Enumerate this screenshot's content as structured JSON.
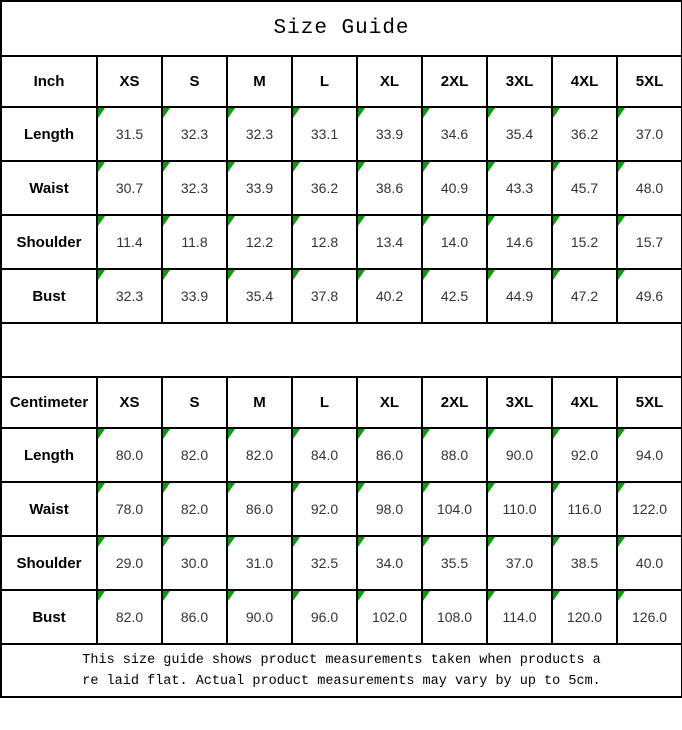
{
  "title": "Size Guide",
  "colors": {
    "border": "#000000",
    "flag_triangle_green": "#0a9a0a",
    "data_text": "#333333",
    "background": "#ffffff"
  },
  "size_columns": [
    "XS",
    "S",
    "M",
    "L",
    "XL",
    "2XL",
    "3XL",
    "4XL",
    "5XL"
  ],
  "tables": [
    {
      "unit_label": "Inch",
      "rows": [
        {
          "label": "Length",
          "values": [
            "31.5",
            "32.3",
            "32.3",
            "33.1",
            "33.9",
            "34.6",
            "35.4",
            "36.2",
            "37.0"
          ]
        },
        {
          "label": "Waist",
          "values": [
            "30.7",
            "32.3",
            "33.9",
            "36.2",
            "38.6",
            "40.9",
            "43.3",
            "45.7",
            "48.0"
          ]
        },
        {
          "label": "Shoulder",
          "values": [
            "11.4",
            "11.8",
            "12.2",
            "12.8",
            "13.4",
            "14.0",
            "14.6",
            "15.2",
            "15.7"
          ]
        },
        {
          "label": "Bust",
          "values": [
            "32.3",
            "33.9",
            "35.4",
            "37.8",
            "40.2",
            "42.5",
            "44.9",
            "47.2",
            "49.6"
          ]
        }
      ]
    },
    {
      "unit_label": "Centimeter",
      "rows": [
        {
          "label": "Length",
          "values": [
            "80.0",
            "82.0",
            "82.0",
            "84.0",
            "86.0",
            "88.0",
            "90.0",
            "92.0",
            "94.0"
          ]
        },
        {
          "label": "Waist",
          "values": [
            "78.0",
            "82.0",
            "86.0",
            "92.0",
            "98.0",
            "104.0",
            "110.0",
            "116.0",
            "122.0"
          ]
        },
        {
          "label": "Shoulder",
          "values": [
            "29.0",
            "30.0",
            "31.0",
            "32.5",
            "34.0",
            "35.5",
            "37.0",
            "38.5",
            "40.0"
          ]
        },
        {
          "label": "Bust",
          "values": [
            "82.0",
            "86.0",
            "90.0",
            "96.0",
            "102.0",
            "108.0",
            "114.0",
            "120.0",
            "126.0"
          ]
        }
      ]
    }
  ],
  "footer": {
    "line1": "This size guide shows product measurements taken when products a",
    "line2": "re laid flat. Actual product measurements may vary by up to 5cm."
  }
}
